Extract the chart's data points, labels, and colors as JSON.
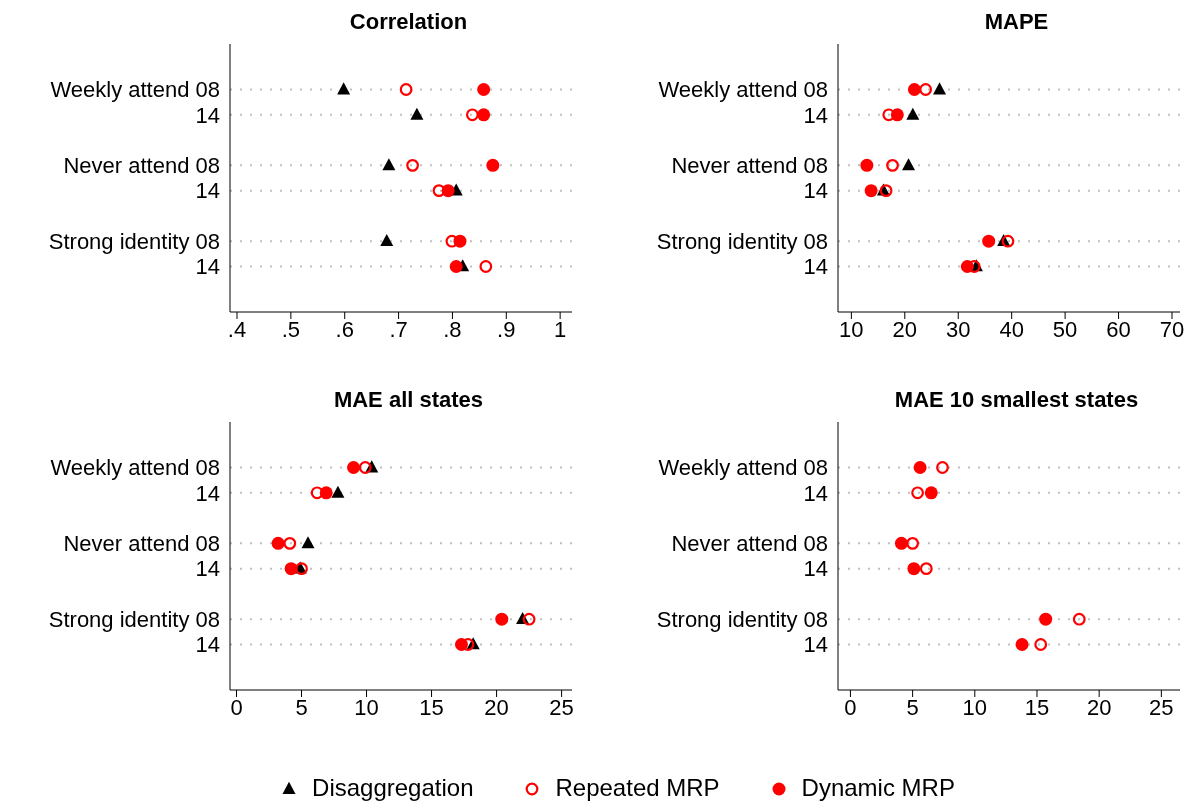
{
  "chart_data": [
    {
      "type": "scatter",
      "title": "Correlation",
      "orientation": "horizontal",
      "categories": [
        "Weekly attend 08",
        "14",
        "Never attend 08",
        "14",
        "Strong identity 08",
        "14"
      ],
      "xlim": [
        0.387,
        1.022
      ],
      "xticks": [
        {
          "value": 0.4,
          "label": ".4"
        },
        {
          "value": 0.5,
          "label": ".5"
        },
        {
          "value": 0.6,
          "label": ".6"
        },
        {
          "value": 0.7,
          "label": ".7"
        },
        {
          "value": 0.8,
          "label": ".8"
        },
        {
          "value": 0.9,
          "label": ".9"
        },
        1
      ],
      "grid": "y",
      "legend": "bottom",
      "series": [
        {
          "name": "Disaggregation",
          "color": "#000000",
          "marker": "triangle",
          "values": [
            0.598,
            0.734,
            0.682,
            0.807,
            0.678,
            0.819
          ]
        },
        {
          "name": "Repeated MRP",
          "color": "#ff0000",
          "marker": "circle-open",
          "values": [
            0.714,
            0.837,
            0.726,
            0.775,
            0.799,
            0.862
          ]
        },
        {
          "name": "Dynamic MRP",
          "color": "#ff0000",
          "marker": "circle",
          "values": [
            0.858,
            0.858,
            0.875,
            0.792,
            0.814,
            0.807
          ]
        }
      ]
    },
    {
      "type": "scatter",
      "title": "MAPE",
      "orientation": "horizontal",
      "categories": [
        "Weekly attend 08",
        "14",
        "Never attend 08",
        "14",
        "Strong identity 08",
        "14"
      ],
      "xlim": [
        7.5,
        71.5
      ],
      "xticks": [
        10,
        20,
        30,
        40,
        50,
        60,
        70
      ],
      "grid": "y",
      "series": [
        {
          "name": "Disaggregation",
          "color": "#000000",
          "marker": "triangle",
          "values": [
            26.5,
            21.5,
            20.7,
            16.0,
            38.5,
            33.4
          ]
        },
        {
          "name": "Repeated MRP",
          "color": "#ff0000",
          "marker": "circle-open",
          "values": [
            23.9,
            17.0,
            17.7,
            16.5,
            39.3,
            33.0
          ]
        },
        {
          "name": "Dynamic MRP",
          "color": "#ff0000",
          "marker": "circle",
          "values": [
            21.8,
            18.6,
            12.9,
            13.7,
            35.7,
            31.7
          ]
        }
      ]
    },
    {
      "type": "scatter",
      "title": "MAE all states",
      "orientation": "horizontal",
      "categories": [
        "Weekly attend 08",
        "14",
        "Never attend 08",
        "14",
        "Strong identity 08",
        "14"
      ],
      "xlim": [
        -0.5,
        25.8
      ],
      "xticks": [
        0,
        5,
        10,
        15,
        20,
        25
      ],
      "grid": "y",
      "series": [
        {
          "name": "Disaggregation",
          "color": "#000000",
          "marker": "triangle",
          "values": [
            10.4,
            7.8,
            5.5,
            4.9,
            22.0,
            18.2
          ]
        },
        {
          "name": "Repeated MRP",
          "color": "#ff0000",
          "marker": "circle-open",
          "values": [
            9.9,
            6.2,
            4.1,
            5.0,
            22.5,
            17.8
          ]
        },
        {
          "name": "Dynamic MRP",
          "color": "#ff0000",
          "marker": "circle",
          "values": [
            9.0,
            6.9,
            3.2,
            4.2,
            20.4,
            17.3
          ]
        }
      ]
    },
    {
      "type": "scatter",
      "title": "MAE 10 smallest states",
      "orientation": "horizontal",
      "categories": [
        "Weekly attend 08",
        "14",
        "Never attend 08",
        "14",
        "Strong identity 08",
        "14"
      ],
      "xlim": [
        -1,
        26.5
      ],
      "xticks": [
        0,
        5,
        10,
        15,
        20,
        25
      ],
      "grid": "y",
      "series": [
        {
          "name": "Repeated MRP",
          "color": "#ff0000",
          "marker": "circle-open",
          "values": [
            7.4,
            5.4,
            5.0,
            6.1,
            18.4,
            15.3
          ]
        },
        {
          "name": "Dynamic MRP",
          "color": "#ff0000",
          "marker": "circle",
          "values": [
            5.6,
            6.5,
            4.1,
            5.1,
            15.7,
            13.8
          ]
        }
      ]
    }
  ]
}
